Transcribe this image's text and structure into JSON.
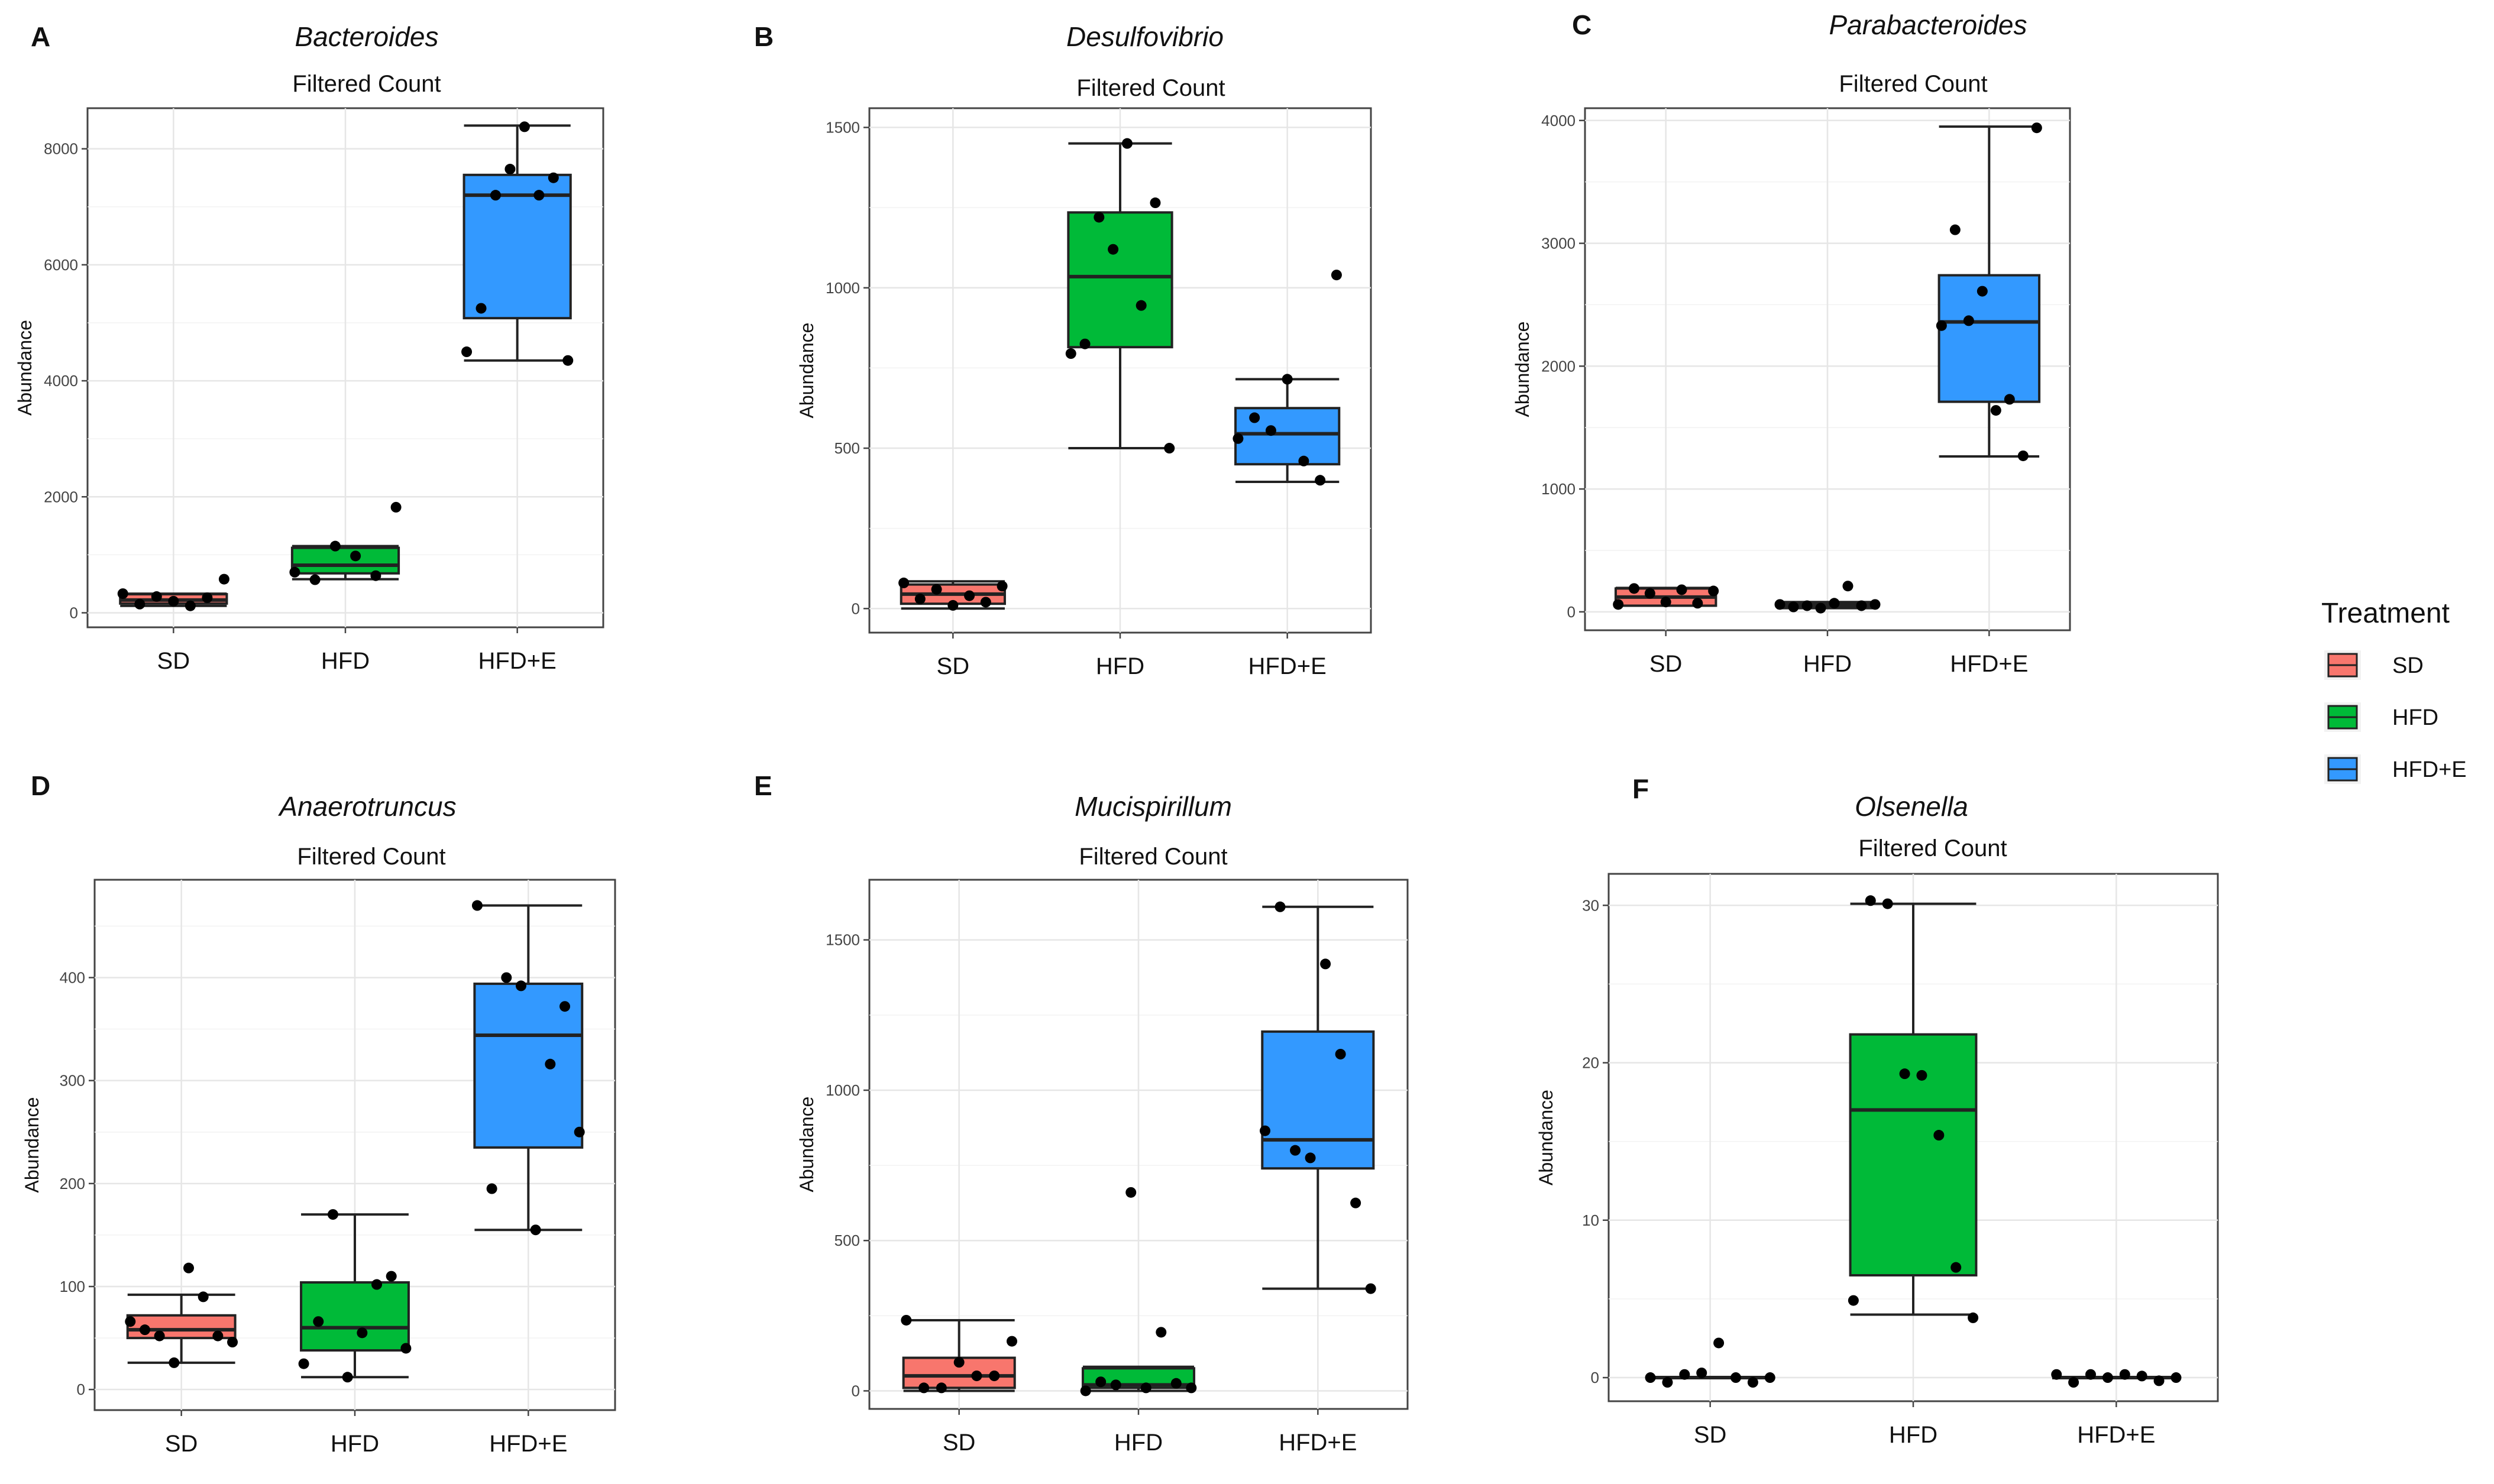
{
  "chart_data": [
    {
      "letter": "A",
      "type": "box",
      "title": "Bacteroides",
      "subtitle": "Filtered Count",
      "xlabel": "",
      "ylabel": "Abundance",
      "ylim": [
        -250,
        8700
      ],
      "yticks": [
        0,
        2000,
        4000,
        6000,
        8000
      ],
      "categories": [
        "SD",
        "HFD",
        "HFD+E"
      ],
      "boxes": [
        {
          "group": "SD",
          "whisker_low": 120,
          "q1": 160,
          "median": 220,
          "q3": 320,
          "whisker_high": 330
        },
        {
          "group": "HFD",
          "whisker_low": 580,
          "q1": 680,
          "median": 820,
          "q3": 1120,
          "whisker_high": 1150
        },
        {
          "group": "HFD+E",
          "whisker_low": 4350,
          "q1": 5080,
          "median": 7200,
          "q3": 7550,
          "whisker_high": 8400
        }
      ],
      "points": [
        {
          "group": "SD",
          "values": [
            330,
            150,
            280,
            200,
            120,
            260,
            580
          ]
        },
        {
          "group": "HFD",
          "values": [
            700,
            570,
            1150,
            980,
            640,
            1820
          ]
        },
        {
          "group": "HFD+E",
          "values": [
            4500,
            5250,
            7200,
            7650,
            8380,
            7200,
            7500,
            4350
          ]
        }
      ]
    },
    {
      "letter": "B",
      "type": "box",
      "title": "Desulfovibrio",
      "subtitle": "Filtered Count",
      "xlabel": "",
      "ylabel": "Abundance",
      "ylim": [
        -75,
        1560
      ],
      "yticks": [
        0,
        500,
        1000,
        1500
      ],
      "categories": [
        "SD",
        "HFD",
        "HFD+E"
      ],
      "boxes": [
        {
          "group": "SD",
          "whisker_low": 0,
          "q1": 15,
          "median": 45,
          "q3": 75,
          "whisker_high": 85
        },
        {
          "group": "HFD",
          "whisker_low": 500,
          "q1": 815,
          "median": 1035,
          "q3": 1235,
          "whisker_high": 1450
        },
        {
          "group": "HFD+E",
          "whisker_low": 395,
          "q1": 450,
          "median": 545,
          "q3": 625,
          "whisker_high": 715
        }
      ],
      "points": [
        {
          "group": "SD",
          "values": [
            80,
            30,
            60,
            10,
            40,
            20,
            70
          ]
        },
        {
          "group": "HFD",
          "values": [
            795,
            825,
            1220,
            1120,
            1450,
            945,
            1265,
            500
          ]
        },
        {
          "group": "HFD+E",
          "values": [
            530,
            595,
            555,
            715,
            460,
            400,
            1040
          ]
        }
      ]
    },
    {
      "letter": "C",
      "type": "box",
      "title": "Parabacteroides",
      "subtitle": "Filtered Count",
      "xlabel": "",
      "ylabel": "Abundance",
      "ylim": [
        -150,
        4100
      ],
      "yticks": [
        0,
        1000,
        2000,
        3000,
        4000
      ],
      "categories": [
        "SD",
        "HFD",
        "HFD+E"
      ],
      "boxes": [
        {
          "group": "SD",
          "whisker_low": 50,
          "q1": 50,
          "median": 120,
          "q3": 190,
          "whisker_high": 195
        },
        {
          "group": "HFD",
          "whisker_low": 30,
          "q1": 45,
          "median": 55,
          "q3": 70,
          "whisker_high": 80
        },
        {
          "group": "HFD+E",
          "whisker_low": 1265,
          "q1": 1710,
          "median": 2360,
          "q3": 2740,
          "whisker_high": 3950
        }
      ],
      "points": [
        {
          "group": "SD",
          "values": [
            60,
            190,
            150,
            80,
            180,
            70,
            170
          ]
        },
        {
          "group": "HFD",
          "values": [
            60,
            40,
            50,
            30,
            70,
            210,
            50,
            60
          ]
        },
        {
          "group": "HFD+E",
          "values": [
            2330,
            3110,
            2370,
            2610,
            1640,
            1730,
            1270,
            3940
          ]
        }
      ]
    },
    {
      "letter": "D",
      "type": "box",
      "title": "Anaerotruncus",
      "subtitle": "Filtered Count",
      "xlabel": "",
      "ylabel": "Abundance",
      "ylim": [
        -20,
        495
      ],
      "yticks": [
        0,
        100,
        200,
        300,
        400
      ],
      "categories": [
        "SD",
        "HFD",
        "HFD+E"
      ],
      "boxes": [
        {
          "group": "SD",
          "whisker_low": 26,
          "q1": 50,
          "median": 58,
          "q3": 72,
          "whisker_high": 92
        },
        {
          "group": "HFD",
          "whisker_low": 12,
          "q1": 38,
          "median": 60,
          "q3": 104,
          "whisker_high": 170
        },
        {
          "group": "HFD+E",
          "whisker_low": 155,
          "q1": 235,
          "median": 344,
          "q3": 394,
          "whisker_high": 470
        }
      ],
      "points": [
        {
          "group": "SD",
          "values": [
            66,
            58,
            52,
            26,
            118,
            90,
            52,
            46
          ]
        },
        {
          "group": "HFD",
          "values": [
            25,
            66,
            170,
            12,
            55,
            102,
            110,
            40
          ]
        },
        {
          "group": "HFD+E",
          "values": [
            470,
            195,
            400,
            392,
            155,
            316,
            372,
            250
          ]
        }
      ]
    },
    {
      "letter": "E",
      "type": "box",
      "title": "Mucispirillum",
      "subtitle": "Filtered Count",
      "xlabel": "",
      "ylabel": "Abundance",
      "ylim": [
        -60,
        1700
      ],
      "yticks": [
        0,
        500,
        1000,
        1500
      ],
      "categories": [
        "SD",
        "HFD",
        "HFD+E"
      ],
      "boxes": [
        {
          "group": "SD",
          "whisker_low": 0,
          "q1": 10,
          "median": 50,
          "q3": 110,
          "whisker_high": 235
        },
        {
          "group": "HFD",
          "whisker_low": 0,
          "q1": 10,
          "median": 20,
          "q3": 75,
          "whisker_high": 80
        },
        {
          "group": "HFD+E",
          "whisker_low": 340,
          "q1": 740,
          "median": 835,
          "q3": 1195,
          "whisker_high": 1610
        }
      ],
      "points": [
        {
          "group": "SD",
          "values": [
            235,
            10,
            10,
            95,
            50,
            50,
            165
          ]
        },
        {
          "group": "HFD",
          "values": [
            0,
            30,
            20,
            660,
            10,
            195,
            25,
            10
          ]
        },
        {
          "group": "HFD+E",
          "values": [
            865,
            1610,
            800,
            775,
            1420,
            1120,
            625,
            340
          ]
        }
      ]
    },
    {
      "letter": "F",
      "type": "box",
      "title": "Olsenella",
      "subtitle": "Filtered Count",
      "xlabel": "",
      "ylabel": "Abundance",
      "ylim": [
        -1.5,
        32
      ],
      "yticks": [
        0,
        10,
        20,
        30
      ],
      "categories": [
        "SD",
        "HFD",
        "HFD+E"
      ],
      "boxes": [
        {
          "group": "SD",
          "whisker_low": 0,
          "q1": 0,
          "median": 0,
          "q3": 0,
          "whisker_high": 0
        },
        {
          "group": "HFD",
          "whisker_low": 4,
          "q1": 6.5,
          "median": 17,
          "q3": 21.8,
          "whisker_high": 30.1
        },
        {
          "group": "HFD+E",
          "whisker_low": 0,
          "q1": 0,
          "median": 0,
          "q3": 0,
          "whisker_high": 0
        }
      ],
      "points": [
        {
          "group": "SD",
          "values": [
            0,
            -0.3,
            0.2,
            0.3,
            2.2,
            0,
            -0.3,
            0
          ]
        },
        {
          "group": "HFD",
          "values": [
            4.9,
            30.3,
            30.1,
            19.3,
            19.2,
            15.4,
            7,
            3.8
          ]
        },
        {
          "group": "HFD+E",
          "values": [
            0.2,
            -0.3,
            0.2,
            0,
            0.2,
            0.1,
            -0.2,
            0
          ]
        }
      ]
    }
  ],
  "legend": {
    "title": "Treatment",
    "items": [
      {
        "label": "SD",
        "color": "#F8766D"
      },
      {
        "label": "HFD",
        "color": "#00BA38"
      },
      {
        "label": "HFD+E",
        "color": "#3399FF"
      }
    ]
  },
  "colors": {
    "SD": "#F8766D",
    "HFD": "#00BA38",
    "HFD+E": "#3399FF"
  }
}
